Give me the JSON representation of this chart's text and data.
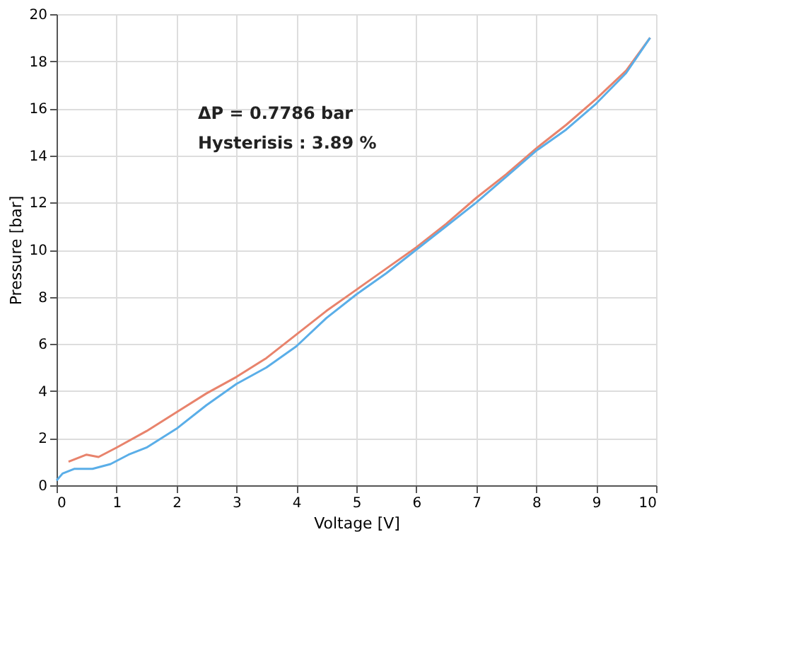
{
  "chart_data": {
    "type": "line",
    "xlabel": "Voltage [V]",
    "ylabel": "Pressure [bar]",
    "xlim": [
      0,
      10
    ],
    "ylim": [
      0,
      20
    ],
    "xticks": [
      0,
      1,
      2,
      3,
      4,
      5,
      6,
      7,
      8,
      9,
      10
    ],
    "yticks": [
      0,
      2,
      4,
      6,
      8,
      10,
      12,
      14,
      16,
      18,
      20
    ],
    "grid": true,
    "line_style": "solid",
    "marker": "none",
    "annotations": [
      "ΔP = 0.7786 bar",
      "Hysterisis : 3.89 %"
    ],
    "series": [
      {
        "color": "#e8836c",
        "x": [
          0.2,
          0.5,
          0.7,
          1,
          1.5,
          2,
          2.5,
          3,
          3.5,
          4,
          4.5,
          5,
          5.5,
          6,
          6.5,
          7,
          7.5,
          8,
          8.5,
          9,
          9.5,
          9.9
        ],
        "values": [
          1.0,
          1.3,
          1.2,
          1.6,
          2.3,
          3.1,
          3.9,
          4.6,
          5.4,
          6.4,
          7.4,
          8.3,
          9.2,
          10.1,
          11.1,
          12.2,
          13.2,
          14.3,
          15.3,
          16.4,
          17.6,
          19.0
        ]
      },
      {
        "color": "#5aaee8",
        "x": [
          0,
          0.1,
          0.3,
          0.6,
          0.9,
          1.2,
          1.5,
          2,
          2.5,
          3,
          3.5,
          4,
          4.5,
          5,
          5.5,
          6,
          6.3,
          6.5,
          7,
          7.5,
          8,
          8.5,
          9,
          9.5,
          9.9
        ],
        "values": [
          0.2,
          0.5,
          0.7,
          0.7,
          0.9,
          1.3,
          1.6,
          2.4,
          3.4,
          4.3,
          5.0,
          5.9,
          7.1,
          8.1,
          9.0,
          10.0,
          10.6,
          11.0,
          12.0,
          13.1,
          14.2,
          15.1,
          16.2,
          17.5,
          19.0
        ]
      }
    ]
  }
}
